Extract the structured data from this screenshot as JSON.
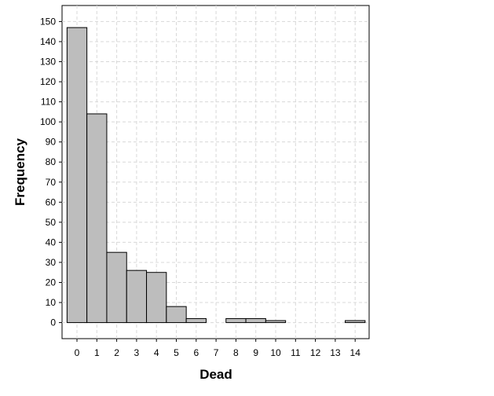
{
  "chart_data": {
    "type": "bar",
    "title": "",
    "xlabel": "Dead",
    "ylabel": "Frequency",
    "categories": [
      "0",
      "1",
      "2",
      "3",
      "4",
      "5",
      "6",
      "7",
      "8",
      "9",
      "10",
      "11",
      "12",
      "13",
      "14"
    ],
    "values": [
      147,
      104,
      35,
      26,
      25,
      8,
      2,
      0,
      2,
      2,
      1,
      0,
      0,
      0,
      1
    ],
    "ylim": [
      -8,
      158
    ],
    "yticks": [
      0,
      10,
      20,
      30,
      40,
      50,
      60,
      70,
      80,
      90,
      100,
      110,
      120,
      130,
      140,
      150
    ],
    "grid": true,
    "colors": {
      "bar": "#bdbdbd",
      "outline": "#000000",
      "grid": "#d8d8d8"
    }
  }
}
